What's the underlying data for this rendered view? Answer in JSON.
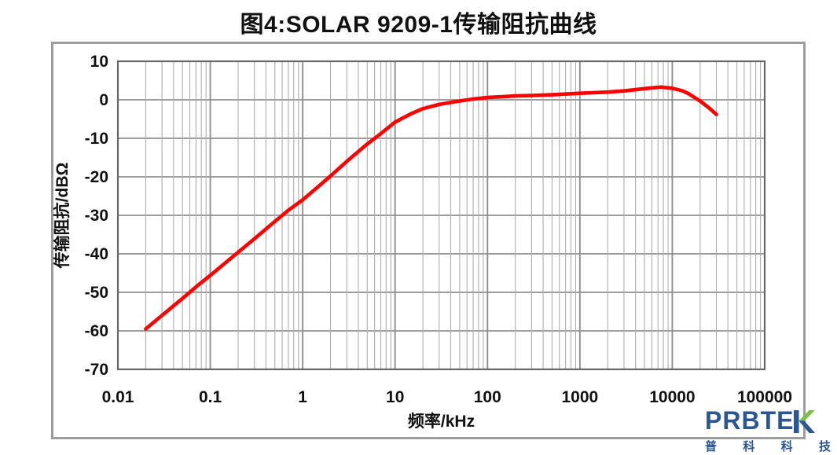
{
  "title": "图4:SOLAR 9209-1传输阻抗曲线",
  "chart_data": {
    "type": "line",
    "title": "图4:SOLAR 9209-1传输阻抗曲线",
    "xlabel": "频率/kHz",
    "ylabel": "传输阻抗/dBΩ",
    "x_scale": "log",
    "x_range": [
      0.01,
      100000
    ],
    "ylim": [
      -70,
      10
    ],
    "y_tick_step": 10,
    "x_tick_labels": [
      "0.01",
      "0.1",
      "1",
      "10",
      "100",
      "1000",
      "10000",
      "100000"
    ],
    "y_tick_labels": [
      "10",
      "0",
      "-10",
      "-20",
      "-30",
      "-40",
      "-50",
      "-60",
      "-70"
    ],
    "grid": "x log major+minor, y major only",
    "legend": "none",
    "series": [
      {
        "name": "传输阻抗",
        "color": "#fe0000",
        "points": [
          [
            0.02,
            -59.5
          ],
          [
            0.03,
            -56.0
          ],
          [
            0.05,
            -51.6
          ],
          [
            0.07,
            -48.6
          ],
          [
            0.1,
            -45.6
          ],
          [
            0.2,
            -39.6
          ],
          [
            0.3,
            -36.1
          ],
          [
            0.5,
            -31.6
          ],
          [
            0.7,
            -28.7
          ],
          [
            1,
            -26.0
          ],
          [
            1.5,
            -22.4
          ],
          [
            2,
            -19.8
          ],
          [
            3,
            -16.0
          ],
          [
            5,
            -11.5
          ],
          [
            7,
            -8.8
          ],
          [
            10,
            -5.8
          ],
          [
            15,
            -3.6
          ],
          [
            20,
            -2.3
          ],
          [
            30,
            -1.2
          ],
          [
            50,
            -0.3
          ],
          [
            70,
            0.2
          ],
          [
            100,
            0.6
          ],
          [
            200,
            1.0
          ],
          [
            300,
            1.1
          ],
          [
            500,
            1.3
          ],
          [
            700,
            1.5
          ],
          [
            1000,
            1.7
          ],
          [
            2000,
            2.0
          ],
          [
            3000,
            2.3
          ],
          [
            5000,
            2.9
          ],
          [
            7500,
            3.3
          ],
          [
            10000,
            3.0
          ],
          [
            13000,
            2.3
          ],
          [
            15000,
            1.6
          ],
          [
            20000,
            -0.3
          ],
          [
            25000,
            -2.1
          ],
          [
            30000,
            -3.8
          ]
        ]
      }
    ]
  },
  "colors": {
    "curve": "#fe0000",
    "grid_minor": "#adadad",
    "grid_major": "#8f8f8f",
    "plot_border": "#666666",
    "frame_border": "#9c9c9c",
    "text": "#111111",
    "logo_blue": "#2b5694",
    "logo_green": "#7dc142"
  },
  "logo": {
    "brand": "PRBTEK",
    "brand_prefix": "PRBTE",
    "chinese": [
      "普",
      "科",
      "科",
      "技"
    ]
  }
}
